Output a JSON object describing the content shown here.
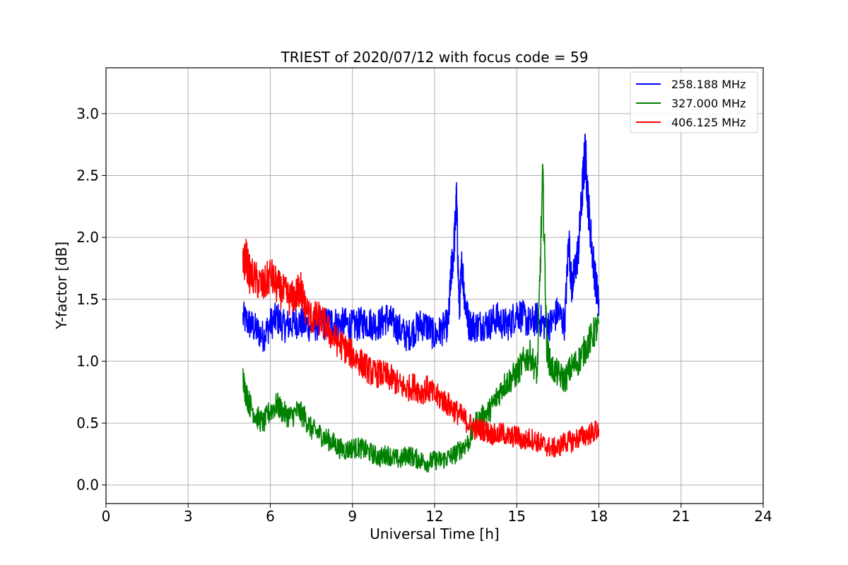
{
  "chart_data": {
    "type": "line",
    "title": "TRIEST of 2020/07/12 with focus code = 59",
    "xlabel": "Universal Time [h]",
    "ylabel": "Y-factor [dB]",
    "xlim": [
      0,
      24
    ],
    "ylim": [
      -0.15,
      3.37
    ],
    "xticks": [
      0,
      3,
      6,
      9,
      12,
      15,
      18,
      21,
      24
    ],
    "yticks": [
      0.0,
      0.5,
      1.0,
      1.5,
      2.0,
      2.5,
      3.0
    ],
    "xtick_labels": [
      "0",
      "3",
      "6",
      "9",
      "12",
      "15",
      "18",
      "21",
      "24"
    ],
    "ytick_labels": [
      "0.0",
      "0.5",
      "1.0",
      "1.5",
      "2.0",
      "2.5",
      "3.0"
    ],
    "grid": true,
    "legend_position": "top-right",
    "series": [
      {
        "name": "258.188 MHz",
        "color": "#0000ff",
        "x": [
          5.0,
          5.25,
          5.5,
          5.75,
          6.0,
          6.25,
          6.5,
          6.75,
          7.0,
          7.25,
          7.5,
          7.75,
          8.0,
          8.25,
          8.5,
          8.75,
          9.0,
          9.25,
          9.5,
          9.75,
          10.0,
          10.25,
          10.5,
          10.75,
          11.0,
          11.25,
          11.5,
          11.75,
          12.0,
          12.25,
          12.5,
          12.6,
          12.7,
          12.8,
          12.9,
          13.0,
          13.1,
          13.25,
          13.5,
          13.75,
          14.0,
          14.25,
          14.5,
          14.75,
          15.0,
          15.25,
          15.5,
          15.75,
          16.0,
          16.25,
          16.5,
          16.75,
          16.9,
          17.0,
          17.1,
          17.25,
          17.4,
          17.5,
          17.6,
          17.75,
          17.9,
          18.0
        ],
        "y": [
          1.35,
          1.3,
          1.25,
          1.2,
          1.3,
          1.35,
          1.28,
          1.3,
          1.32,
          1.3,
          1.28,
          1.3,
          1.3,
          1.32,
          1.3,
          1.3,
          1.28,
          1.3,
          1.32,
          1.3,
          1.3,
          1.35,
          1.3,
          1.25,
          1.2,
          1.25,
          1.3,
          1.28,
          1.2,
          1.25,
          1.3,
          1.7,
          1.9,
          2.3,
          1.4,
          1.8,
          1.5,
          1.3,
          1.28,
          1.3,
          1.3,
          1.35,
          1.3,
          1.3,
          1.4,
          1.35,
          1.3,
          1.35,
          1.3,
          1.3,
          1.4,
          1.3,
          2.0,
          1.6,
          1.7,
          1.9,
          2.4,
          2.7,
          2.3,
          1.9,
          1.6,
          1.5
        ]
      },
      {
        "name": "327.000 MHz",
        "color": "#008000",
        "x": [
          5.0,
          5.1,
          5.25,
          5.5,
          5.75,
          6.0,
          6.25,
          6.5,
          6.75,
          7.0,
          7.25,
          7.5,
          7.75,
          8.0,
          8.25,
          8.5,
          8.75,
          9.0,
          9.25,
          9.5,
          9.75,
          10.0,
          10.25,
          10.5,
          10.75,
          11.0,
          11.25,
          11.5,
          11.75,
          12.0,
          12.25,
          12.5,
          12.75,
          13.0,
          13.25,
          13.5,
          13.75,
          14.0,
          14.25,
          14.5,
          14.75,
          15.0,
          15.25,
          15.5,
          15.75,
          15.95,
          16.1,
          16.25,
          16.5,
          16.75,
          17.0,
          17.25,
          17.5,
          17.75,
          18.0
        ],
        "y": [
          0.85,
          0.75,
          0.65,
          0.55,
          0.5,
          0.6,
          0.65,
          0.58,
          0.55,
          0.6,
          0.55,
          0.45,
          0.42,
          0.38,
          0.35,
          0.3,
          0.28,
          0.3,
          0.3,
          0.28,
          0.25,
          0.22,
          0.25,
          0.22,
          0.2,
          0.25,
          0.22,
          0.2,
          0.18,
          0.2,
          0.2,
          0.22,
          0.25,
          0.3,
          0.35,
          0.5,
          0.55,
          0.6,
          0.7,
          0.8,
          0.85,
          0.9,
          1.0,
          1.05,
          0.9,
          2.5,
          1.1,
          0.95,
          0.9,
          0.85,
          0.95,
          1.0,
          1.1,
          1.2,
          1.3
        ]
      },
      {
        "name": "406.125 MHz",
        "color": "#ff0000",
        "x": [
          5.0,
          5.1,
          5.25,
          5.5,
          5.75,
          6.0,
          6.25,
          6.5,
          6.75,
          7.0,
          7.1,
          7.25,
          7.5,
          7.75,
          8.0,
          8.25,
          8.5,
          8.75,
          9.0,
          9.25,
          9.5,
          9.75,
          10.0,
          10.25,
          10.5,
          10.75,
          11.0,
          11.25,
          11.5,
          11.75,
          12.0,
          12.25,
          12.5,
          12.75,
          13.0,
          13.25,
          13.5,
          13.75,
          14.0,
          14.25,
          14.5,
          14.75,
          15.0,
          15.25,
          15.5,
          15.75,
          16.0,
          16.25,
          16.5,
          16.75,
          17.0,
          17.25,
          17.5,
          17.75,
          18.0
        ],
        "y": [
          1.75,
          1.85,
          1.7,
          1.65,
          1.6,
          1.7,
          1.6,
          1.55,
          1.5,
          1.55,
          1.6,
          1.45,
          1.35,
          1.35,
          1.3,
          1.2,
          1.15,
          1.1,
          1.05,
          1.0,
          0.95,
          0.9,
          0.9,
          0.88,
          0.85,
          0.8,
          0.78,
          0.8,
          0.75,
          0.78,
          0.72,
          0.7,
          0.65,
          0.6,
          0.55,
          0.5,
          0.45,
          0.45,
          0.42,
          0.4,
          0.42,
          0.38,
          0.4,
          0.35,
          0.38,
          0.35,
          0.32,
          0.3,
          0.3,
          0.35,
          0.35,
          0.38,
          0.4,
          0.42,
          0.45
        ]
      }
    ]
  }
}
